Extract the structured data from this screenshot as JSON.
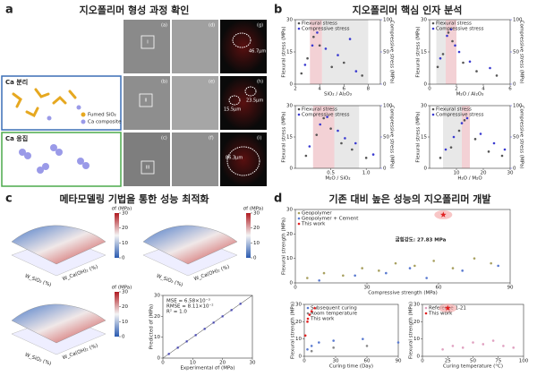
{
  "panel_a": {
    "label": "a",
    "title": "지오폴리머 형성 과정 확인",
    "ca_separation": "Ca 분리",
    "ca_aggregation": "Ca 응집",
    "legend": [
      "Fumed SiO₂",
      "Ca composite"
    ],
    "image_labels": [
      "(a)",
      "(d)",
      "(g)",
      "(b)",
      "(e)",
      "(h)",
      "(c)",
      "(f)",
      "(i)"
    ],
    "region_labels": [
      "I",
      "II",
      "III"
    ],
    "measurements": [
      "46.7μm",
      "15.5μm",
      "23.5μm",
      "86.3μm"
    ]
  },
  "panel_b": {
    "label": "b",
    "title": "지오폴리머 핵심 인자 분석",
    "plots": [
      {
        "xlabel": "SiO₂ / Al₂O₃",
        "ylabel": "Flexural stress (MPa)",
        "y2label": "Compressive stress (MPa)",
        "xlim": [
          2,
          9
        ],
        "xticks": [
          2,
          4,
          6,
          8
        ],
        "ylim": [
          0,
          30
        ],
        "yticks": [
          0,
          15,
          30
        ],
        "y2lim": [
          0,
          100
        ],
        "y2ticks": [
          0,
          50,
          100
        ],
        "bands": [
          {
            "from": 3.2,
            "to": 4.2,
            "color": "#f0c6ca"
          },
          {
            "from": 4.2,
            "to": 8,
            "color": "#e2e2e2"
          }
        ],
        "series": [
          {
            "name": "Flexural stress",
            "color": "#555555",
            "x": [
              2.5,
              3,
              3.5,
              4,
              5,
              6,
              7.5
            ],
            "values": [
              5,
              12,
              22,
              18,
              8,
              10,
              4
            ]
          },
          {
            "name": "Compressive stress",
            "color": "#3a3ad0",
            "axis": "y2",
            "x": [
              2.8,
              3.4,
              3.8,
              4.5,
              5.5,
              6.5,
              7
            ],
            "values": [
              30,
              60,
              80,
              55,
              45,
              70,
              20
            ]
          }
        ]
      },
      {
        "xlabel": "M₂O / Al₂O₃",
        "ylabel": "Flexural stress (MPa)",
        "y2label": "Compressive stress (MPa)",
        "xlim": [
          0,
          6
        ],
        "xticks": [
          0,
          2,
          4,
          6
        ],
        "ylim": [
          0,
          30
        ],
        "yticks": [
          0,
          15,
          30
        ],
        "y2lim": [
          0,
          100
        ],
        "y2ticks": [
          0,
          50,
          100
        ],
        "bands": [
          {
            "from": 0.5,
            "to": 1.2,
            "color": "#e2e2e2"
          },
          {
            "from": 1.2,
            "to": 2,
            "color": "#f0c6ca"
          }
        ],
        "series": [
          {
            "name": "Flexural stress",
            "color": "#555555",
            "x": [
              0.6,
              1,
              1.4,
              1.7,
              2.5,
              3.5,
              5
            ],
            "values": [
              8,
              14,
              24,
              20,
              10,
              6,
              4
            ]
          },
          {
            "name": "Compressive stress",
            "color": "#3a3ad0",
            "axis": "y2",
            "x": [
              0.8,
              1.3,
              1.6,
              1.9,
              2.2,
              3,
              4.5
            ],
            "values": [
              40,
              75,
              85,
              60,
              50,
              35,
              25
            ]
          }
        ]
      },
      {
        "xlabel": "M₂O / SiO₂",
        "ylabel": "Flexural stress (MPa)",
        "y2label": "Compressive stress (MPa)",
        "xlim": [
          0,
          1.2
        ],
        "xticks": [
          0.5,
          {
            "value": 1,
            "label": "1.0"
          }
        ],
        "ylim": [
          0,
          30
        ],
        "yticks": [
          0,
          15,
          30
        ],
        "y2lim": [
          0,
          100
        ],
        "y2ticks": [
          0,
          50,
          100
        ],
        "bands": [
          {
            "from": 0.25,
            "to": 0.55,
            "color": "#f0c6ca"
          },
          {
            "from": 0.55,
            "to": 0.9,
            "color": "#e2e2e2"
          }
        ],
        "series": [
          {
            "name": "Flexural stress",
            "color": "#555555",
            "x": [
              0.15,
              0.3,
              0.4,
              0.5,
              0.65,
              0.8,
              1
            ],
            "values": [
              6,
              16,
              24,
              19,
              12,
              9,
              5
            ]
          },
          {
            "name": "Compressive stress",
            "color": "#3a3ad0",
            "axis": "y2",
            "x": [
              0.2,
              0.35,
              0.45,
              0.6,
              0.7,
              0.85,
              1.1
            ],
            "values": [
              35,
              70,
              82,
              60,
              48,
              40,
              22
            ]
          }
        ]
      },
      {
        "xlabel": "H₂O / M₂O",
        "ylabel": "Flexural stress (MPa)",
        "y2label": "Compressive stress (MPa)",
        "xlim": [
          0,
          30
        ],
        "xticks": [
          10,
          20,
          30
        ],
        "ylim": [
          0,
          30
        ],
        "yticks": [
          0,
          15,
          30
        ],
        "y2lim": [
          0,
          100
        ],
        "y2ticks": [
          0,
          50,
          100
        ],
        "bands": [
          {
            "from": 5,
            "to": 12,
            "color": "#e2e2e2"
          },
          {
            "from": 12,
            "to": 15,
            "color": "#f0c6ca"
          }
        ],
        "series": [
          {
            "name": "Flexural stress",
            "color": "#555555",
            "x": [
              4,
              8,
              11,
              13,
              17,
              22,
              27
            ],
            "values": [
              5,
              10,
              18,
              23,
              14,
              8,
              6
            ]
          },
          {
            "name": "Compressive stress",
            "color": "#3a3ad0",
            "axis": "y2",
            "x": [
              6,
              9,
              12,
              14,
              19,
              24,
              28
            ],
            "values": [
              30,
              50,
              72,
              80,
              55,
              40,
              30
            ]
          }
        ]
      }
    ]
  },
  "panel_c": {
    "label": "c",
    "title": "메타모델링 기법을 통한 성능 최적화",
    "surfaces": [
      {
        "colorbar_label": "σf (MPa)",
        "colorbar_ticks": [
          0,
          10,
          20,
          30
        ],
        "x_label": "W_SiO₂ (%)",
        "y_label": "W_Ca(OH)₂ (%)"
      },
      {
        "colorbar_label": "σf (MPa)",
        "colorbar_ticks": [
          0,
          10,
          20,
          30
        ],
        "x_label": "W_SiO₂ (%)",
        "y_label": "W_Ca(OH)₂ (%)"
      },
      {
        "colorbar_label": "σf (MPa)",
        "colorbar_ticks": [
          0,
          10,
          20,
          30
        ],
        "x_label": "W_SiO₂ (%)",
        "y_label": "W_Ca(OH)₂ (%)"
      }
    ],
    "parity": {
      "xlabel": "Experimental σf (MPa)",
      "ylabel": "Predicted σf (MPa)",
      "xlim": [
        0,
        30
      ],
      "xticks": [
        0,
        10,
        20,
        30
      ],
      "ylim": [
        0,
        30
      ],
      "yticks": [
        0,
        10,
        20,
        30
      ],
      "annotations": [
        "MSE = 6.58×10⁻³",
        "RMSE = 8.11×10⁻²",
        "R² = 1.0"
      ],
      "series": [
        {
          "color": "#6a6ae0",
          "x": [
            2,
            5,
            8,
            11,
            14,
            17,
            20,
            23,
            26
          ],
          "values": [
            2,
            5,
            8,
            11,
            14,
            17,
            20,
            23,
            26
          ]
        }
      ]
    }
  },
  "panel_d": {
    "label": "d",
    "title": "기존 대비 높은 성능의 지오폴리머 개발",
    "annotation": "굽힘강도: 27.83 MPa",
    "plots": [
      {
        "xlabel": "Compressive strength (MPa)",
        "ylabel": "Flexural strength (MPa)",
        "xlim": [
          0,
          90
        ],
        "xticks": [
          0,
          30,
          60,
          90
        ],
        "ylim": [
          0,
          30
        ],
        "yticks": [
          0,
          10,
          20,
          30
        ],
        "series": [
          {
            "name": "Geopolymer",
            "color": "#a8a060",
            "x": [
              5,
              12,
              20,
              28,
              35,
              42,
              50,
              58,
              66,
              75,
              82
            ],
            "values": [
              2,
              4,
              3,
              6,
              5,
              8,
              7,
              9,
              6,
              10,
              8
            ]
          },
          {
            "name": "Geopolymer + Cement",
            "color": "#5a7ad0",
            "x": [
              10,
              25,
              38,
              48,
              55,
              70,
              85
            ],
            "values": [
              1,
              3,
              4,
              6,
              2,
              5,
              7
            ]
          },
          {
            "name": "This work",
            "color": "#e02020",
            "marker": "star",
            "x": [
              62
            ],
            "values": [
              27.83
            ]
          }
        ]
      },
      {
        "xlabel": "Curing time (Day)",
        "ylabel": "Flexural strength (MPa)",
        "xlim": [
          0,
          90
        ],
        "xticks": [
          0,
          30,
          60,
          90
        ],
        "ylim": [
          0,
          30
        ],
        "yticks": [
          0,
          10,
          20,
          30
        ],
        "series": [
          {
            "name": "Subsequent curing",
            "color": "#5a7ad0",
            "x": [
              3,
              7,
              14,
              28,
              56,
              90
            ],
            "values": [
              4,
              6,
              8,
              9,
              10,
              8
            ]
          },
          {
            "name": "Room temperature",
            "color": "#888888",
            "x": [
              7,
              28,
              60
            ],
            "values": [
              3,
              5,
              6
            ]
          },
          {
            "name": "This work",
            "color": "#e02020",
            "x": [
              1,
              3,
              5,
              7,
              10
            ],
            "values": [
              12,
              20,
              24,
              26,
              27.83
            ]
          }
        ]
      },
      {
        "xlabel": "Curing temperature (°C)",
        "ylabel": "Flexural strength (MPa)",
        "xlim": [
          0,
          100
        ],
        "xticks": [
          0,
          25,
          50,
          75,
          100
        ],
        "ylim": [
          0,
          30
        ],
        "yticks": [
          0,
          10,
          20,
          30
        ],
        "series": [
          {
            "name": "Reference 1-21",
            "color": "#e0a0c0",
            "x": [
              20,
              30,
              40,
              50,
              60,
              70,
              80,
              90
            ],
            "values": [
              4,
              6,
              5,
              8,
              7,
              9,
              6,
              5
            ]
          },
          {
            "name": "This work",
            "color": "#e02020",
            "marker": "star",
            "x": [
              25
            ],
            "values": [
              27.83
            ]
          }
        ]
      }
    ]
  }
}
